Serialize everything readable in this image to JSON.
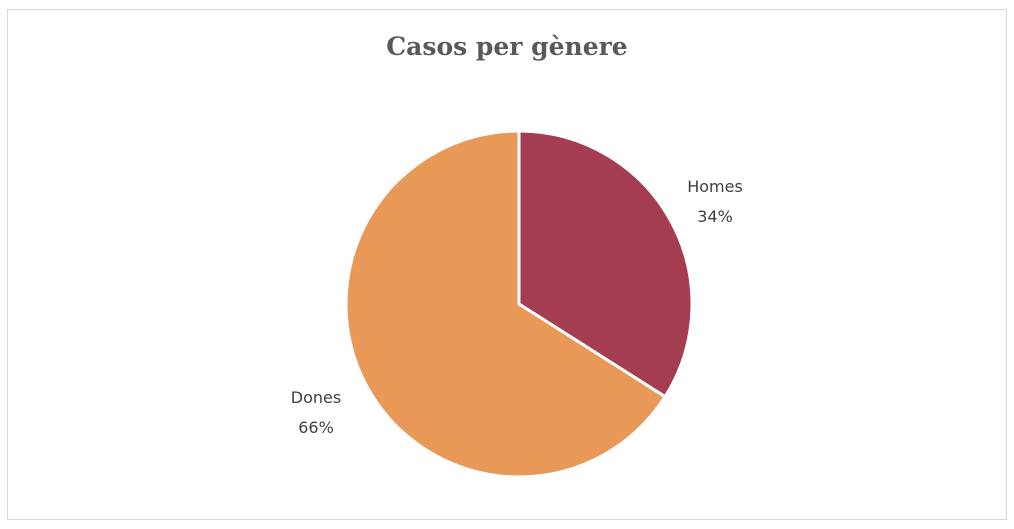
{
  "chart_data": {
    "type": "pie",
    "title": "Casos per gènere",
    "slices": [
      {
        "label": "Homes",
        "value": 34,
        "display": "34%",
        "color": "#a43c52"
      },
      {
        "label": "Dones",
        "value": 66,
        "display": "66%",
        "color": "#e89957"
      }
    ],
    "legend": "none",
    "start_angle_deg": 0,
    "direction": "clockwise"
  }
}
